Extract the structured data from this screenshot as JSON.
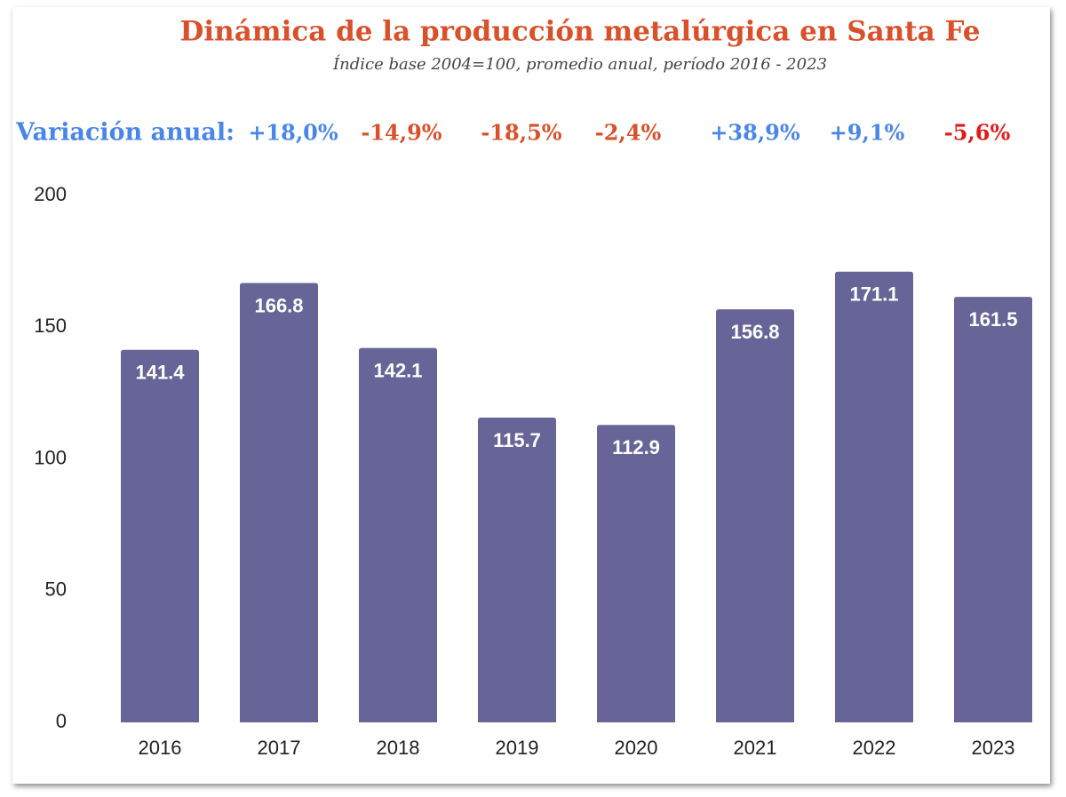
{
  "chart_data": {
    "type": "bar",
    "title": "Dinámica de la producción metalúrgica en Santa Fe",
    "subtitle": "Índice base 2004=100, promedio anual, período 2016 - 2023",
    "annotation_title": "Variación anual:",
    "annotations": [
      {
        "text": "+18,0%",
        "color": "#4a86e8"
      },
      {
        "text": "-14,9%",
        "color": "#d9512b"
      },
      {
        "text": "-18,5%",
        "color": "#d9512b"
      },
      {
        "text": "-2,4%",
        "color": "#d9512b"
      },
      {
        "text": "+38,9%",
        "color": "#4a86e8"
      },
      {
        "text": "+9,1%",
        "color": "#4a86e8"
      },
      {
        "text": "-5,6%",
        "color": "#e01b1b"
      }
    ],
    "categories": [
      "2016",
      "2017",
      "2018",
      "2019",
      "2020",
      "2021",
      "2022",
      "2023"
    ],
    "values": [
      141.4,
      166.8,
      142.1,
      115.7,
      112.9,
      156.8,
      171.1,
      161.5
    ],
    "color": "#676598",
    "ylim": [
      0,
      200
    ],
    "yticks": [
      0,
      50,
      100,
      150,
      200
    ],
    "grid": false
  }
}
